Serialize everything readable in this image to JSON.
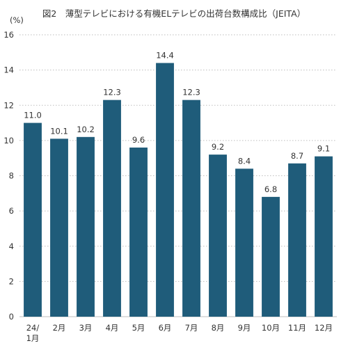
{
  "chart_data": {
    "type": "bar",
    "title": "図2　薄型テレビにおける有機ELテレビの出荷台数構成比（JEITA）",
    "unit_label": "(%)",
    "ylim": [
      0,
      16
    ],
    "yticks": [
      0,
      2,
      4,
      6,
      8,
      10,
      12,
      14,
      16
    ],
    "grid": true,
    "bar_color": "#1f5c7a",
    "categories": [
      [
        "24/",
        "1月"
      ],
      [
        "2月"
      ],
      [
        "3月"
      ],
      [
        "4月"
      ],
      [
        "5月"
      ],
      [
        "6月"
      ],
      [
        "7月"
      ],
      [
        "8月"
      ],
      [
        "9月"
      ],
      [
        "10月"
      ],
      [
        "11月"
      ],
      [
        "12月"
      ]
    ],
    "values": [
      11.0,
      10.1,
      10.2,
      12.3,
      9.6,
      14.4,
      12.3,
      9.2,
      8.4,
      6.8,
      8.7,
      9.1
    ],
    "data_labels": [
      "11.0",
      "10.1",
      "10.2",
      "12.3",
      "9.6",
      "14.4",
      "12.3",
      "9.2",
      "8.4",
      "6.8",
      "8.7",
      "9.1"
    ]
  }
}
